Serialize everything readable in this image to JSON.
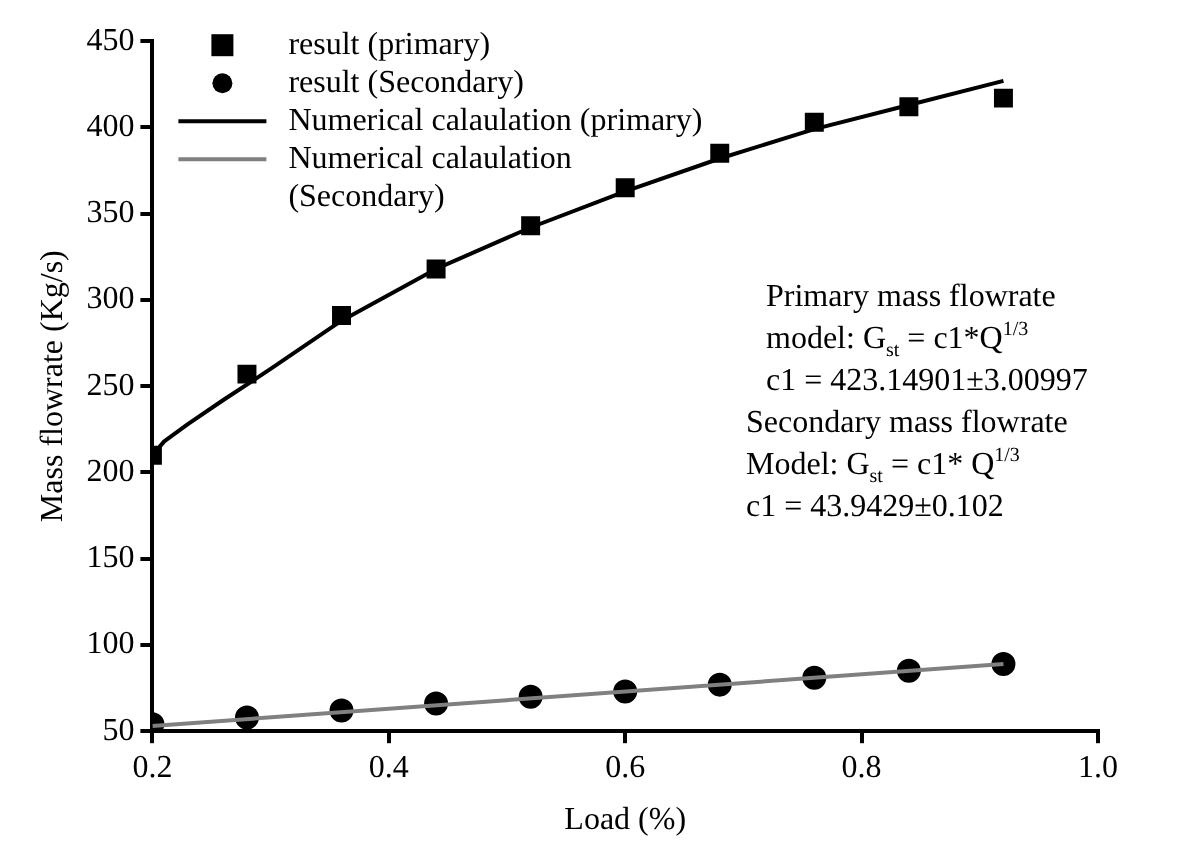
{
  "chart_data": {
    "type": "scatter",
    "xlabel": "Load (%)",
    "ylabel": "Mass flowrate (Kg/s)",
    "xlim": [
      0.2,
      1.0
    ],
    "xticks": [
      {
        "value": 0.2,
        "label": "0.2"
      },
      {
        "value": 0.4,
        "label": "0.4"
      },
      {
        "value": 0.6,
        "label": "0.6"
      },
      {
        "value": 0.8,
        "label": "0.8"
      },
      {
        "value": 1.0,
        "label": "1.0"
      }
    ],
    "ylim": [
      50,
      450
    ],
    "yticks": [
      50,
      100,
      150,
      200,
      250,
      300,
      350,
      400,
      450
    ],
    "grid": false,
    "legend": "top left",
    "series": [
      {
        "name": "result (primary)",
        "type": "scatter",
        "marker": "square",
        "color": "#000000",
        "x": [
          0.2,
          0.28,
          0.36,
          0.44,
          0.52,
          0.6,
          0.68,
          0.76,
          0.84,
          0.92
        ],
        "values": [
          210,
          257,
          291,
          318,
          343,
          365,
          385,
          403,
          412,
          417
        ]
      },
      {
        "name": "result (Secondary)",
        "type": "scatter",
        "marker": "circle",
        "color": "#000000",
        "x": [
          0.2,
          0.28,
          0.36,
          0.44,
          0.52,
          0.6,
          0.68,
          0.76,
          0.84,
          0.92
        ],
        "values": [
          54,
          58,
          62,
          66,
          70,
          73,
          77,
          81,
          85,
          89
        ]
      },
      {
        "name": "Numerical calaulation (primary)",
        "type": "line",
        "marker": "none",
        "color": "#000000",
        "x": [
          0.2,
          0.21,
          0.23,
          0.26,
          0.3,
          0.36,
          0.44,
          0.52,
          0.6,
          0.68,
          0.76,
          0.84,
          0.92
        ],
        "values": [
          210,
          218,
          228,
          242,
          260,
          288,
          318,
          342,
          363,
          382,
          399,
          413,
          427
        ]
      },
      {
        "name": "Numerical calaulation (Secondary)",
        "type": "line",
        "marker": "none",
        "color": "#808080",
        "x": [
          0.2,
          0.92
        ],
        "values": [
          53,
          89
        ]
      }
    ],
    "annotations": [
      "Primary mass flowrate",
      "model: G$_{st}$ = c1*Q$^{1/3}$",
      "c1 = 423.14901±3.00997",
      "Secondary mass flowrate",
      "Model: G$_{st}$ = c1* Q$^{1/3}$",
      "c1 = 43.9429±0.102"
    ]
  }
}
